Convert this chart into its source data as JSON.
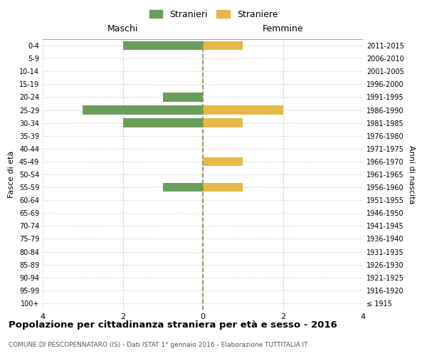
{
  "age_groups": [
    "100+",
    "95-99",
    "90-94",
    "85-89",
    "80-84",
    "75-79",
    "70-74",
    "65-69",
    "60-64",
    "55-59",
    "50-54",
    "45-49",
    "40-44",
    "35-39",
    "30-34",
    "25-29",
    "20-24",
    "15-19",
    "10-14",
    "5-9",
    "0-4"
  ],
  "birth_years": [
    "≤ 1915",
    "1916-1920",
    "1921-1925",
    "1926-1930",
    "1931-1935",
    "1936-1940",
    "1941-1945",
    "1946-1950",
    "1951-1955",
    "1956-1960",
    "1961-1965",
    "1966-1970",
    "1971-1975",
    "1976-1980",
    "1981-1985",
    "1986-1990",
    "1991-1995",
    "1996-2000",
    "2001-2005",
    "2006-2010",
    "2011-2015"
  ],
  "males": [
    0,
    0,
    0,
    0,
    0,
    0,
    0,
    0,
    0,
    -1,
    0,
    0,
    0,
    0,
    -2,
    -3,
    -1,
    0,
    0,
    0,
    -2
  ],
  "females": [
    0,
    0,
    0,
    0,
    0,
    0,
    0,
    0,
    0,
    1,
    0,
    1,
    0,
    0,
    1,
    2,
    0,
    0,
    0,
    0,
    1
  ],
  "male_color": "#6a9e5b",
  "female_color": "#e6b84a",
  "title": "Popolazione per cittadinanza straniera per età e sesso - 2016",
  "subtitle": "COMUNE DI PESCOPENNATARO (IS) - Dati ISTAT 1° gennaio 2016 - Elaborazione TUTTITALIA.IT",
  "xlabel_left": "Maschi",
  "xlabel_right": "Femmine",
  "ylabel_left": "Fasce di età",
  "ylabel_right": "Anni di nascita",
  "legend_male": "Stranieri",
  "legend_female": "Straniere",
  "xlim": [
    -4,
    4
  ],
  "background_color": "#ffffff",
  "grid_color": "#cccccc",
  "dashed_line_color": "#888855",
  "bar_height": 0.7
}
